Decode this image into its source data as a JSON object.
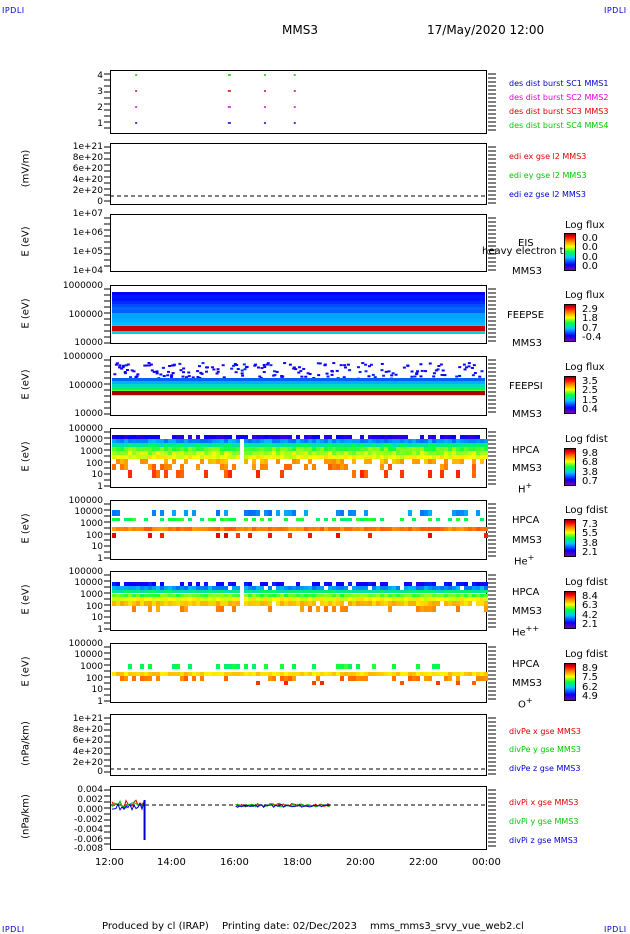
{
  "header": {
    "corner_left_top": "IPDLI",
    "corner_right_top": "IPDLI",
    "corner_left_bottom": "IPDLI",
    "corner_right_bottom": "IPDLI",
    "spacecraft": "MMS3",
    "datetime": "17/May/2020 12:00"
  },
  "footer": {
    "produced": "Produced by cl (IRAP)",
    "printing": "Printing date: 02/Dec/2023",
    "script": "mms_mms3_srvy_vue_web2.cl"
  },
  "x_axis": {
    "ticks": [
      "12:00",
      "14:00",
      "16:00",
      "18:00",
      "20:00",
      "22:00",
      "00:00"
    ]
  },
  "colors": {
    "red": "#dd0000",
    "green": "#00c800",
    "blue": "#0000cc",
    "magenta": "#dd00dd"
  },
  "chart_data": [
    {
      "type": "scatter",
      "name": "burst",
      "yticks": [
        "4",
        "3",
        "2",
        "1"
      ],
      "legend": [
        {
          "label": "des dist burst SC1 MMS1",
          "color": "#0000cc"
        },
        {
          "label": "des dist burst SC2 MMS2",
          "color": "#dd00dd"
        },
        {
          "label": "des dist burst SC3 MMS3",
          "color": "#dd0000"
        },
        {
          "label": "des dist burst SC4 MMS4",
          "color": "#00c800"
        }
      ],
      "intervals_hours": [
        [
          12.8,
          12.85
        ],
        [
          15.75,
          15.85
        ],
        [
          16.9,
          16.95
        ],
        [
          17.85,
          17.9
        ]
      ]
    },
    {
      "type": "line",
      "ylabel": "(mV/m)",
      "yticks": [
        "1e+21",
        "8e+20",
        "6e+20",
        "4e+20",
        "2e+20",
        "0"
      ],
      "legend": [
        {
          "label": "edi ex gse l2 MMS3",
          "color": "#dd0000"
        },
        {
          "label": "edi ey gse l2 MMS3",
          "color": "#00c800"
        },
        {
          "label": "edi ez gse l2 MMS3",
          "color": "#0000cc"
        }
      ]
    },
    {
      "type": "heatmap",
      "ylabel": "E (eV)",
      "yticks": [
        "1e+07",
        "1e+06",
        "1e+05",
        "1e+04"
      ],
      "instrument": "EIS",
      "instrument_extra": "heavy electron to",
      "sc": "MMS3",
      "colorbar_title": "Log flux",
      "colorbar_values": [
        "0.0",
        "0.0",
        "0.0",
        "0.0"
      ]
    },
    {
      "type": "heatmap",
      "ylabel": "E (eV)",
      "yticks": [
        "1000000",
        "100000",
        "10000"
      ],
      "instrument": "FEEPSE",
      "sc": "MMS3",
      "colorbar_title": "Log flux",
      "colorbar_values": [
        "2.9",
        "1.8",
        "0.7",
        "-0.4"
      ]
    },
    {
      "type": "heatmap",
      "ylabel": "E (eV)",
      "yticks": [
        "1000000",
        "100000",
        "10000"
      ],
      "instrument": "FEEPSI",
      "sc": "MMS3",
      "colorbar_title": "Log flux",
      "colorbar_values": [
        "3.5",
        "2.5",
        "1.5",
        "0.4"
      ]
    },
    {
      "type": "heatmap",
      "ylabel": "E (eV)",
      "yticks": [
        "100000",
        "10000",
        "1000",
        "100",
        "10",
        "1"
      ],
      "instrument": "HPCA",
      "sc": "MMS3",
      "species": "H",
      "species_sup": "+",
      "colorbar_title": "Log fdist",
      "colorbar_values": [
        "9.8",
        "6.8",
        "3.8",
        "0.7"
      ]
    },
    {
      "type": "heatmap",
      "ylabel": "E (eV)",
      "yticks": [
        "100000",
        "10000",
        "1000",
        "100",
        "10",
        "1"
      ],
      "instrument": "HPCA",
      "sc": "MMS3",
      "species": "He",
      "species_sup": "+",
      "colorbar_title": "Log fdist",
      "colorbar_values": [
        "7.3",
        "5.5",
        "3.8",
        "2.1"
      ]
    },
    {
      "type": "heatmap",
      "ylabel": "E (eV)",
      "yticks": [
        "100000",
        "10000",
        "1000",
        "100",
        "10",
        "1"
      ],
      "instrument": "HPCA",
      "sc": "MMS3",
      "species": "He",
      "species_sup": "++",
      "colorbar_title": "Log fdist",
      "colorbar_values": [
        "8.4",
        "6.3",
        "4.2",
        "2.1"
      ]
    },
    {
      "type": "heatmap",
      "ylabel": "E (eV)",
      "yticks": [
        "100000",
        "10000",
        "1000",
        "100",
        "10",
        "1"
      ],
      "instrument": "HPCA",
      "sc": "MMS3",
      "species": "O",
      "species_sup": "+",
      "colorbar_title": "Log fdist",
      "colorbar_values": [
        "8.9",
        "7.5",
        "6.2",
        "4.9"
      ]
    },
    {
      "type": "line",
      "ylabel": "(nPa/km)",
      "yticks": [
        "1e+21",
        "8e+20",
        "6e+20",
        "4e+20",
        "2e+20",
        "0"
      ],
      "legend": [
        {
          "label": "divPe x gse MMS3",
          "color": "#dd0000"
        },
        {
          "label": "divPe y gse MMS3",
          "color": "#00c800"
        },
        {
          "label": "divPe z gse MMS3",
          "color": "#0000cc"
        }
      ]
    },
    {
      "type": "line",
      "ylabel": "(nPa/km)",
      "yticks": [
        "0.004",
        "0.002",
        "0.000",
        "-0.002",
        "-0.004",
        "-0.006",
        "-0.008"
      ],
      "legend": [
        {
          "label": "divPi x gse MMS3",
          "color": "#dd0000"
        },
        {
          "label": "divPi y gse MMS3",
          "color": "#00c800"
        },
        {
          "label": "divPi z gse MMS3",
          "color": "#0000cc"
        }
      ]
    }
  ]
}
